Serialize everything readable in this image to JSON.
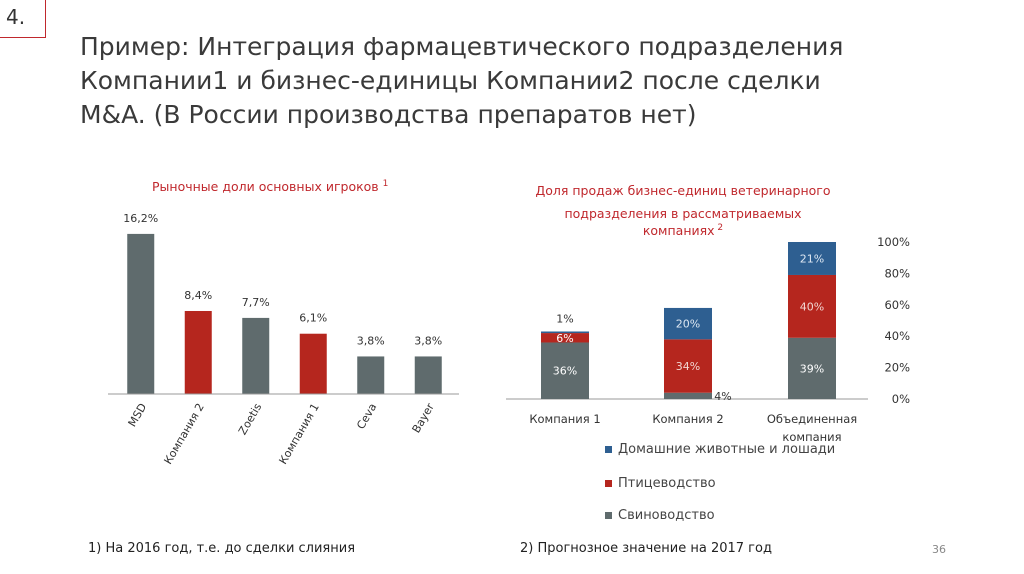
{
  "slide": {
    "number": "4.",
    "page_number": "36"
  },
  "title_lines": [
    "Пример: Интеграция фармацевтического подразделения",
    "Компании1 и бизнес-единицы Компании2 после сделки",
    "M&A. (В России производства препаратов нет)"
  ],
  "footnotes": [
    "1) На 2016 год, т.е. до сделки слияния",
    "2) Прогнозное значение на 2017 год"
  ],
  "colors": {
    "gray": "#5f6b6d",
    "red": "#b5261e",
    "blue": "#2e5f91",
    "title_accent": "#c0282d"
  },
  "chart_data": [
    {
      "type": "bar",
      "title": "Рыночные доли основных игроков",
      "title_superscript": "1",
      "categories": [
        "MSD",
        "Компания 2",
        "Zoetis",
        "Компания 1",
        "Ceva",
        "Bayer"
      ],
      "values": [
        16.2,
        8.4,
        7.7,
        6.1,
        3.8,
        3.8
      ],
      "value_labels": [
        "16,2%",
        "8,4%",
        "7,7%",
        "6,1%",
        "3,8%",
        "3,8%"
      ],
      "bar_colors": [
        "gray",
        "red",
        "gray",
        "red",
        "gray",
        "gray"
      ],
      "ylim": [
        0,
        17
      ]
    },
    {
      "type": "bar",
      "stacked": true,
      "title_lines": [
        "Доля продаж бизнес-единиц ветеринарного",
        "подразделения в рассматриваемых",
        "компаниях"
      ],
      "title_superscript": "2",
      "categories": [
        "Компания 1",
        "Компания 2",
        "Объединенная компания"
      ],
      "category_label_lines": [
        [
          "Компания 1"
        ],
        [
          "Компания 2"
        ],
        [
          "Объединенная",
          "компания"
        ]
      ],
      "series": [
        {
          "name": "Свиноводство",
          "color": "gray",
          "values": [
            36,
            4,
            39
          ],
          "labels": [
            "36%",
            "4%",
            "39%"
          ]
        },
        {
          "name": "Птицеводство",
          "color": "red",
          "values": [
            6,
            34,
            40
          ],
          "labels": [
            "6%",
            "34%",
            "40%"
          ]
        },
        {
          "name": "Домашние животные и лошади",
          "color": "blue",
          "values": [
            1,
            20,
            21
          ],
          "labels": [
            "1%",
            "20%",
            "21%"
          ]
        }
      ],
      "yticks": [
        "0%",
        "20%",
        "40%",
        "60%",
        "80%",
        "100%"
      ],
      "ylim": [
        0,
        100
      ],
      "legend_order": [
        "Домашние животные и лошади",
        "Птицеводство",
        "Свиноводство"
      ]
    }
  ]
}
